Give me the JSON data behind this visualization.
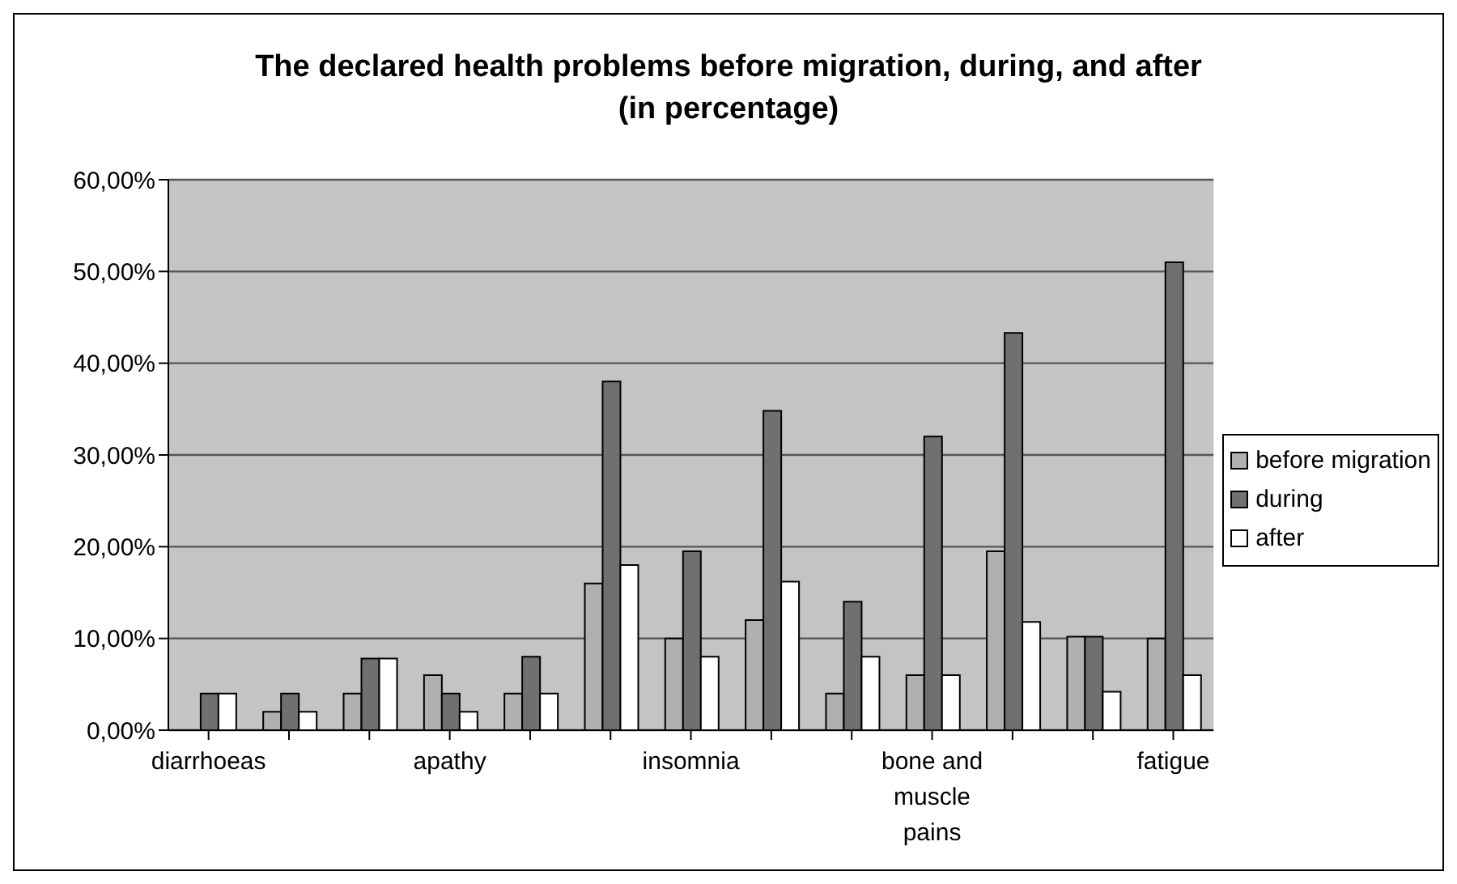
{
  "chart_data": {
    "type": "bar",
    "title": "The declared health problems before migration, during, and after (in percentage)",
    "categories": [
      "diarrhoeas",
      null,
      null,
      "apathy",
      null,
      null,
      "insomnia",
      null,
      null,
      "bone and muscle pains",
      null,
      null,
      "fatigue"
    ],
    "series": [
      {
        "name": "before migration",
        "color": "#b0b0b0",
        "values": [
          0,
          2,
          4,
          6,
          4,
          16,
          10,
          12,
          4,
          6,
          19.5,
          10.2,
          10
        ]
      },
      {
        "name": "during",
        "color": "#707070",
        "values": [
          4,
          4,
          7.8,
          4,
          8,
          38,
          19.5,
          34.8,
          14,
          32,
          43.3,
          10.2,
          51
        ]
      },
      {
        "name": "after",
        "color": "#ffffff",
        "values": [
          4,
          2,
          7.8,
          2,
          4,
          18,
          8,
          16.2,
          8,
          6,
          11.8,
          4.2,
          6
        ]
      }
    ],
    "ylim": [
      0,
      60
    ],
    "yticks": [
      {
        "value": 0,
        "label": "0,00%"
      },
      {
        "value": 10,
        "label": "10,00%"
      },
      {
        "value": 20,
        "label": "20,00%"
      },
      {
        "value": 30,
        "label": "30,00%"
      },
      {
        "value": 40,
        "label": "40,00%"
      },
      {
        "value": 50,
        "label": "50,00%"
      },
      {
        "value": 60,
        "label": "60,00%"
      }
    ],
    "grid": "y",
    "legend": "right"
  }
}
